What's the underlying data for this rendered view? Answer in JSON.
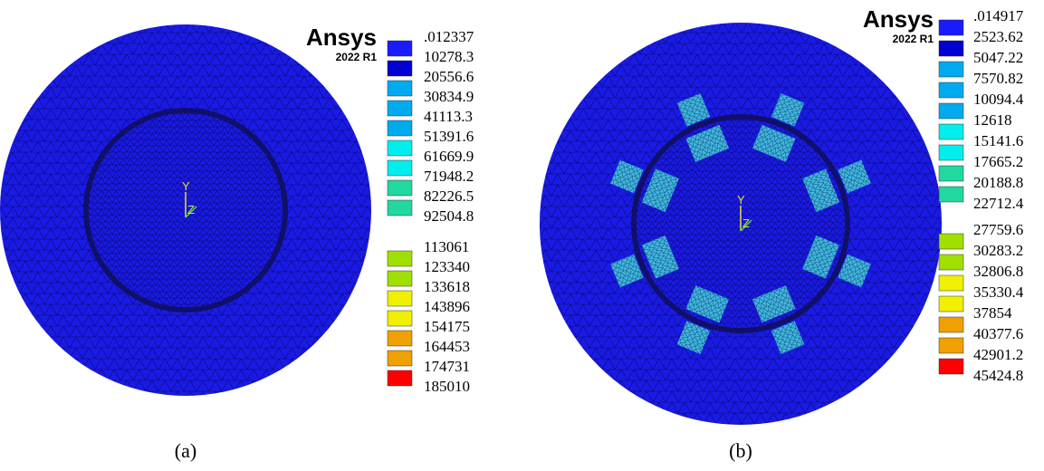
{
  "panels": [
    {
      "logo": "Ansys",
      "version": "2022 R1",
      "triad": [
        "Y",
        "Z"
      ],
      "caption": "(a)",
      "legend": [
        ".012337",
        "10278.3",
        "20556.6",
        "30834.9",
        "41113.3",
        "51391.6",
        "61669.9",
        "71948.2",
        "82226.5",
        "92504.8",
        "113061",
        "123340",
        "133618",
        "143896",
        "154175",
        "164453",
        "174731",
        "185010"
      ]
    },
    {
      "logo": "Ansys",
      "version": "2022 R1",
      "triad": [
        "Y",
        "Z"
      ],
      "caption": "(b)",
      "legend": [
        ".014917",
        "2523.62",
        "5047.22",
        "7570.82",
        "10094.4",
        "12618",
        "15141.6",
        "17665.2",
        "20188.8",
        "22712.4",
        "27759.6",
        "30283.2",
        "32806.8",
        "35330.4",
        "37854",
        "40377.6",
        "42901.2",
        "45424.8"
      ]
    }
  ]
}
